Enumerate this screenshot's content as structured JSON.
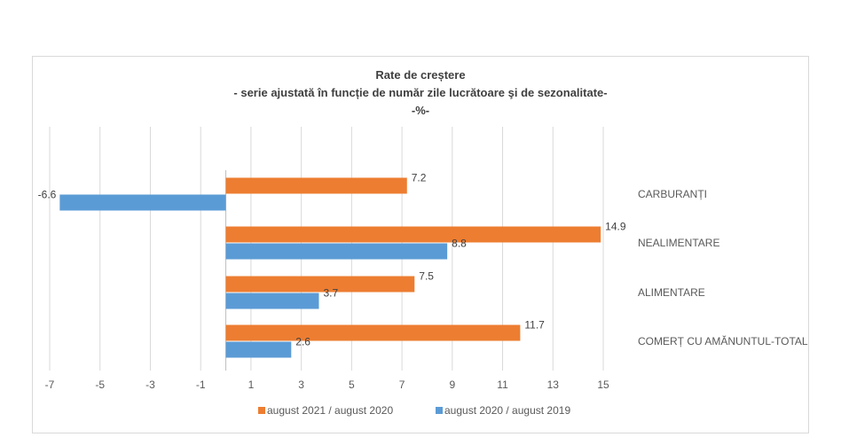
{
  "chart_data": {
    "type": "bar",
    "orientation": "horizontal",
    "title": "Rate de creștere",
    "subtitle": "- serie ajustată în funcție de număr zile lucrătoare şi de sezonalitate-",
    "unit_line": "-%-",
    "categories": [
      "CARBURANȚI",
      "NEALIMENTARE",
      "ALIMENTARE",
      "COMERȚ CU AMĂNUNTUL-TOTAL"
    ],
    "series": [
      {
        "name": "august 2021 / august 2020",
        "color": "#ED7D31",
        "values": [
          7.2,
          14.9,
          7.5,
          11.7
        ]
      },
      {
        "name": "august 2020 / august 2019",
        "color": "#5B9BD5",
        "values": [
          -6.6,
          8.8,
          3.7,
          2.6
        ]
      }
    ],
    "x_ticks": [
      "-7",
      "-5",
      "-3",
      "-1",
      "1",
      "3",
      "5",
      "7",
      "9",
      "11",
      "13",
      "15"
    ],
    "xlim": [
      -7,
      15
    ],
    "grid": "vertical",
    "legend_position": "bottom"
  }
}
